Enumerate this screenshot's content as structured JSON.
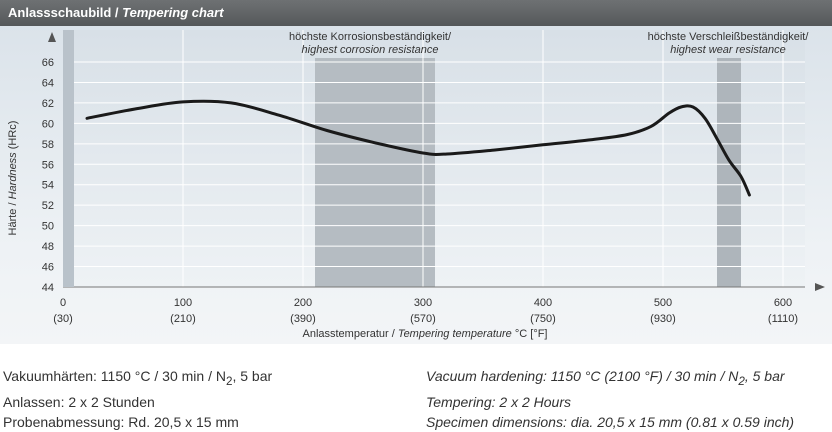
{
  "header": {
    "title_de": "Anlassschaubild /",
    "title_en": "Tempering chart"
  },
  "chart_data": {
    "type": "line",
    "title": "Anlassschaubild / Tempering chart",
    "xlabel_de": "Anlasstemperatur /",
    "xlabel_en": "Tempering temperature",
    "xlabel_unit": "°C [°F]",
    "ylabel_de": "Härte /",
    "ylabel_en": "Hardness",
    "ylabel_unit": "(HRc)",
    "xlim": [
      0,
      600
    ],
    "ylim": [
      44,
      66
    ],
    "x_ticks": [
      {
        "value": 0,
        "label": "0",
        "sublabel": "(30)"
      },
      {
        "value": 100,
        "label": "100",
        "sublabel": "(210)"
      },
      {
        "value": 200,
        "label": "200",
        "sublabel": "(390)"
      },
      {
        "value": 300,
        "label": "300",
        "sublabel": "(570)"
      },
      {
        "value": 400,
        "label": "400",
        "sublabel": "(750)"
      },
      {
        "value": 500,
        "label": "500",
        "sublabel": "(930)"
      },
      {
        "value": 600,
        "label": "600",
        "sublabel": "(1110)"
      }
    ],
    "y_ticks": [
      44,
      46,
      48,
      50,
      52,
      54,
      56,
      58,
      60,
      62,
      64,
      66
    ],
    "series": [
      {
        "name": "Hardness",
        "x": [
          20,
          60,
          100,
          140,
          180,
          220,
          260,
          300,
          320,
          360,
          400,
          440,
          470,
          490,
          505,
          515,
          525,
          535,
          545,
          555,
          565,
          572
        ],
        "y": [
          60.5,
          61.4,
          62.1,
          62.0,
          60.8,
          59.3,
          58.1,
          57.1,
          57.0,
          57.4,
          57.9,
          58.4,
          58.9,
          59.7,
          61.0,
          61.6,
          61.6,
          60.5,
          58.5,
          56.4,
          54.8,
          53.0
        ]
      }
    ],
    "bands": [
      {
        "from": 210,
        "to": 310,
        "label_de": "höchste Korrosionsbeständigkeit/",
        "label_en": "highest corrosion resistance",
        "color": "#b5bcc2"
      },
      {
        "from": 545,
        "to": 565,
        "label_de": "höchste Verschleißbeständigkeit/",
        "label_en": "highest wear resistance",
        "color": "#aeb5bb"
      }
    ]
  },
  "notes_de": [
    "Vakuumhärten: 1150 °C / 30 min / N",
    "Anlassen: 2 x 2 Stunden",
    "Probenabmessung: Rd. 20,5 x 15 mm"
  ],
  "notes_de_gas_tail": ", 5 bar",
  "notes_en": [
    "Vacuum hardening: 1150 °C (2100 °F) / 30 min / N",
    "Tempering: 2 x 2 Hours",
    "Specimen dimensions: dia. 20,5 x 15 mm (0.81 x 0.59 inch)"
  ],
  "notes_en_gas_tail": ", 5 bar",
  "subscript": "2"
}
